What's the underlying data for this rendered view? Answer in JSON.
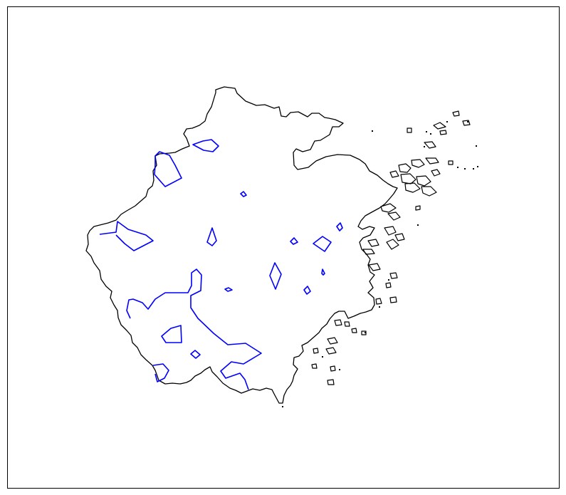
{
  "map": {
    "frame_color": "#000000",
    "coastline_color": "#000000",
    "contour_color": "#0000ff",
    "background_color": "#ffffff",
    "coastline_count": 1,
    "contour_count": 16
  }
}
